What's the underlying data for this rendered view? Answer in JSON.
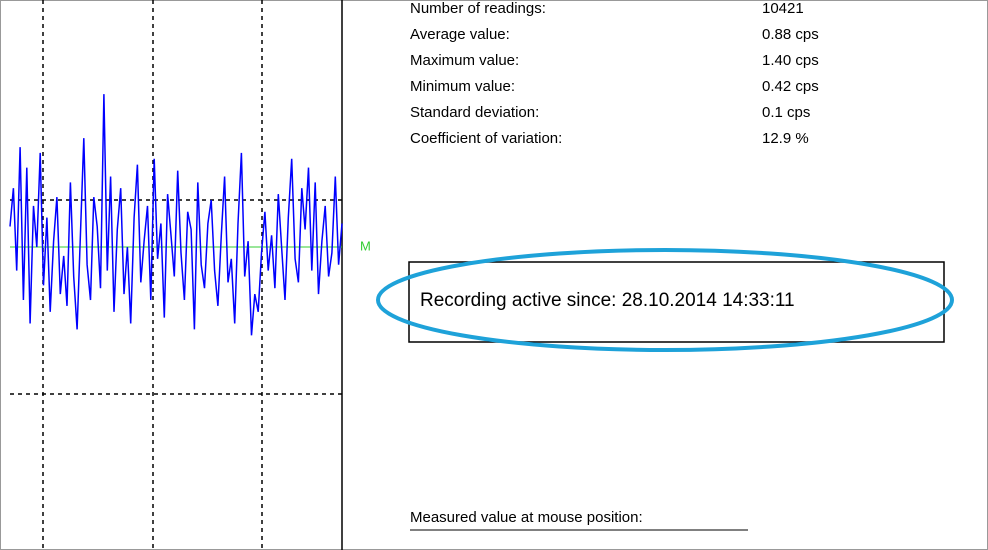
{
  "stats": {
    "rows": [
      {
        "label": "Number of readings:",
        "value": "10421"
      },
      {
        "label": "Average value:",
        "value": "0.88 cps"
      },
      {
        "label": "Maximum value:",
        "value": "1.40 cps"
      },
      {
        "label": "Minimum value:",
        "value": "0.42 cps"
      },
      {
        "label": "Standard deviation:",
        "value": "0.1 cps"
      },
      {
        "label": "Coefficient of variation:",
        "value": "12.9 %"
      }
    ]
  },
  "mean_marker": "M",
  "recording": "Recording active since: 28.10.2014 14:33:11",
  "mouse_label": "Measured value at mouse position:",
  "chart_data": {
    "type": "line",
    "color": "#0000ff",
    "ylim": [
      -0.15,
      1.72
    ],
    "values": [
      0.95,
      1.08,
      0.8,
      1.22,
      0.7,
      1.15,
      0.62,
      1.02,
      0.88,
      1.2,
      0.75,
      0.98,
      0.66,
      0.9,
      1.05,
      0.72,
      0.85,
      0.68,
      1.1,
      0.78,
      0.6,
      0.92,
      1.25,
      0.82,
      0.7,
      1.05,
      0.95,
      0.74,
      1.4,
      0.8,
      1.12,
      0.66,
      0.94,
      1.08,
      0.72,
      0.88,
      0.62,
      0.98,
      1.16,
      0.76,
      0.9,
      1.02,
      0.7,
      1.18,
      0.84,
      0.96,
      0.64,
      1.06,
      0.92,
      0.78,
      1.14,
      0.86,
      0.7,
      1.0,
      0.94,
      0.6,
      1.1,
      0.82,
      0.74,
      0.96,
      1.04,
      0.8,
      0.68,
      0.92,
      1.12,
      0.76,
      0.84,
      0.62,
      0.96,
      1.2,
      0.78,
      0.9,
      0.58,
      0.72,
      0.66,
      0.86,
      1.0,
      0.8,
      0.92,
      0.74,
      1.06,
      0.88,
      0.7,
      0.98,
      1.18,
      0.84,
      0.76,
      1.08,
      0.94,
      1.15,
      0.8,
      1.1,
      0.72,
      0.9,
      1.02,
      0.78,
      0.86,
      1.12,
      0.82,
      0.96
    ],
    "mean": 0.88
  }
}
